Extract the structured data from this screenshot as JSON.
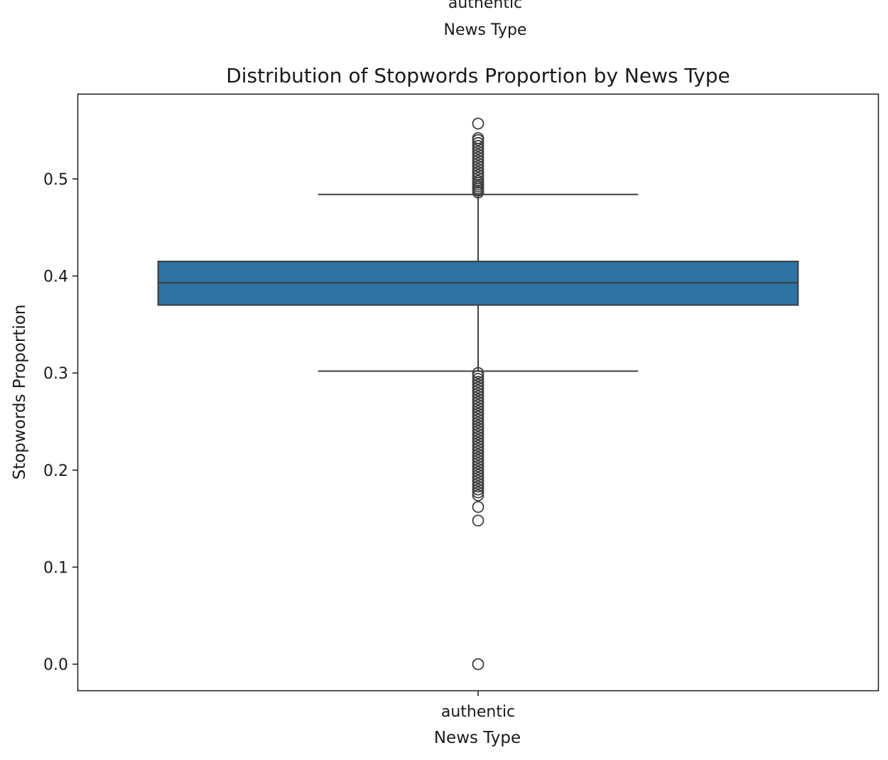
{
  "previous_panel": {
    "tick_label": "authentic",
    "xlabel": "News Type"
  },
  "chart_data": {
    "type": "box",
    "title": "Distribution of Stopwords Proportion by News Type",
    "xlabel": "News Type",
    "ylabel": "Stopwords Proportion",
    "categories": [
      "authentic"
    ],
    "ylim": [
      -0.027,
      0.587
    ],
    "yticks": [
      0.0,
      0.1,
      0.2,
      0.3,
      0.4,
      0.5
    ],
    "ytick_labels": [
      "0.0",
      "0.1",
      "0.2",
      "0.3",
      "0.4",
      "0.5"
    ],
    "grid": false,
    "box_color": "#2e72a3",
    "line_color": "#3f3f3f",
    "boxes": [
      {
        "category": "authentic",
        "whisker_low": 0.302,
        "q1": 0.37,
        "median": 0.393,
        "q3": 0.415,
        "whisker_high": 0.484,
        "outliers": [
          0.557,
          0.542,
          0.54,
          0.537,
          0.534,
          0.531,
          0.528,
          0.525,
          0.522,
          0.519,
          0.516,
          0.513,
          0.51,
          0.507,
          0.504,
          0.501,
          0.498,
          0.496,
          0.494,
          0.492,
          0.49,
          0.488,
          0.486,
          0.3,
          0.297,
          0.294,
          0.291,
          0.288,
          0.285,
          0.282,
          0.279,
          0.276,
          0.273,
          0.27,
          0.267,
          0.264,
          0.261,
          0.258,
          0.255,
          0.252,
          0.249,
          0.246,
          0.243,
          0.24,
          0.237,
          0.234,
          0.231,
          0.228,
          0.225,
          0.222,
          0.219,
          0.216,
          0.213,
          0.21,
          0.207,
          0.204,
          0.201,
          0.198,
          0.195,
          0.192,
          0.189,
          0.186,
          0.183,
          0.18,
          0.177,
          0.174,
          0.162,
          0.148,
          0.0
        ]
      }
    ]
  }
}
